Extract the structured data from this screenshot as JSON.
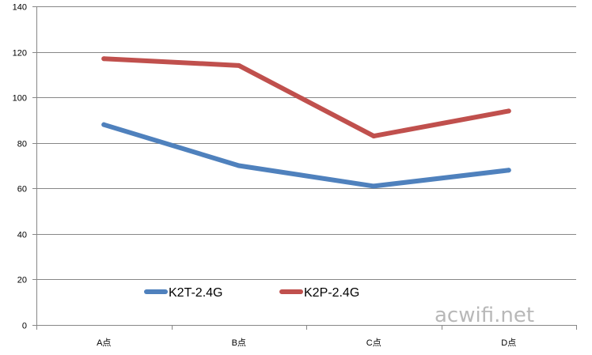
{
  "chart_data": {
    "type": "line",
    "categories": [
      "A点",
      "B点",
      "C点",
      "D点"
    ],
    "series": [
      {
        "name": "K2T-2.4G",
        "values": [
          88,
          70,
          61,
          68
        ],
        "color": "#4f81bd"
      },
      {
        "name": "K2P-2.4G",
        "values": [
          117,
          114,
          83,
          94
        ],
        "color": "#c0504d"
      }
    ],
    "ylim": [
      0,
      140
    ],
    "yticks": [
      0,
      20,
      40,
      60,
      80,
      100,
      120,
      140
    ],
    "grid": true,
    "legend_position": "bottom-left inside plot"
  },
  "watermark": "acwifi.net"
}
